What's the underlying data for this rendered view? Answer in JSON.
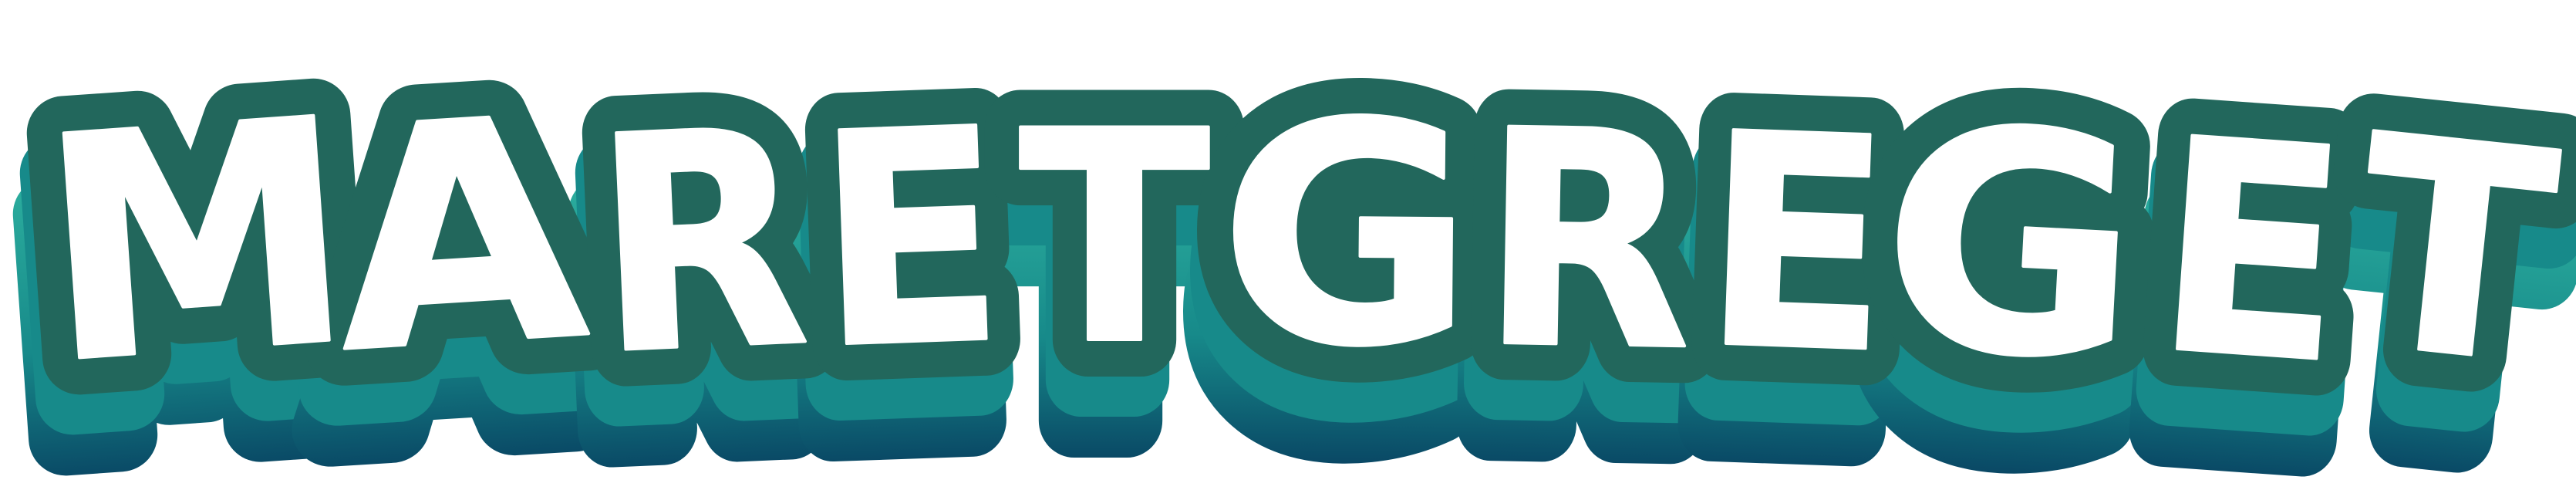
{
  "logo": {
    "word": "MARETGREGET",
    "letters": [
      "M",
      "A",
      "R",
      "E",
      "T",
      "G",
      "R",
      "E",
      "G",
      "E",
      "T"
    ],
    "colors": {
      "face": "#ffffff",
      "outline": "#22675c",
      "outline_dark": "#1c4f47",
      "extrude_top": "#2fb3a1",
      "extrude_mid": "#178a8a",
      "extrude_bottom": "#06385c",
      "background": "#ffffff"
    }
  }
}
